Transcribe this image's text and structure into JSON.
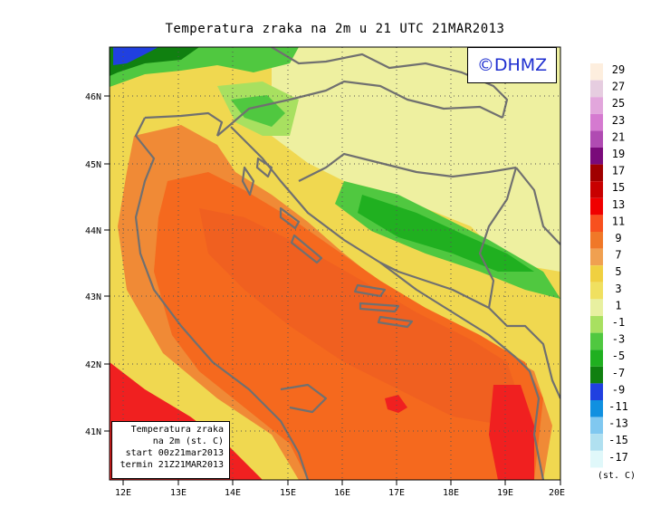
{
  "title": "Temperatura zraka na 2m u 21 UTC 21MAR2013",
  "copyright": "©DHMZ",
  "legend_box": {
    "line1": "Temperatura zraka",
    "line2": "na 2m (st. C)",
    "line3": "start 00z21mar2013",
    "line4": "termin 21Z21MAR2013"
  },
  "axes": {
    "lon_ticks": [
      "12E",
      "13E",
      "14E",
      "15E",
      "16E",
      "17E",
      "18E",
      "19E",
      "20E"
    ],
    "lat_ticks": [
      "46N",
      "45N",
      "44N",
      "43N",
      "42N",
      "41N"
    ]
  },
  "colorbar": {
    "unit": "(st. C)",
    "levels": [
      29,
      27,
      25,
      23,
      21,
      19,
      17,
      15,
      13,
      11,
      9,
      7,
      5,
      3,
      1,
      -1,
      -3,
      -5,
      -7,
      -9,
      -11,
      -13,
      -15,
      -17
    ],
    "colors": [
      "#fdeede",
      "#e6cde0",
      "#e2a6dc",
      "#d57ad0",
      "#b04bb2",
      "#7a0a7a",
      "#a00000",
      "#c80000",
      "#f00000",
      "#f8501e",
      "#f07828",
      "#f0a050",
      "#f0d040",
      "#f0e060",
      "#e8f0a0",
      "#a8e060",
      "#50c840",
      "#20b020",
      "#108010",
      "#2040e0",
      "#1090e0",
      "#80c8f0",
      "#b0e0f0",
      "#e0f8fa"
    ]
  },
  "colors": {
    "sea": "#f5691e",
    "sea_core": "#f06020",
    "coast_warm": "#f08a36",
    "land_mild": "#f0dc50",
    "land_cool": "#eef0a0",
    "land_cold": "#60c840",
    "land_colder": "#28b028",
    "hot_spot": "#f02020",
    "borders": "#707070"
  }
}
